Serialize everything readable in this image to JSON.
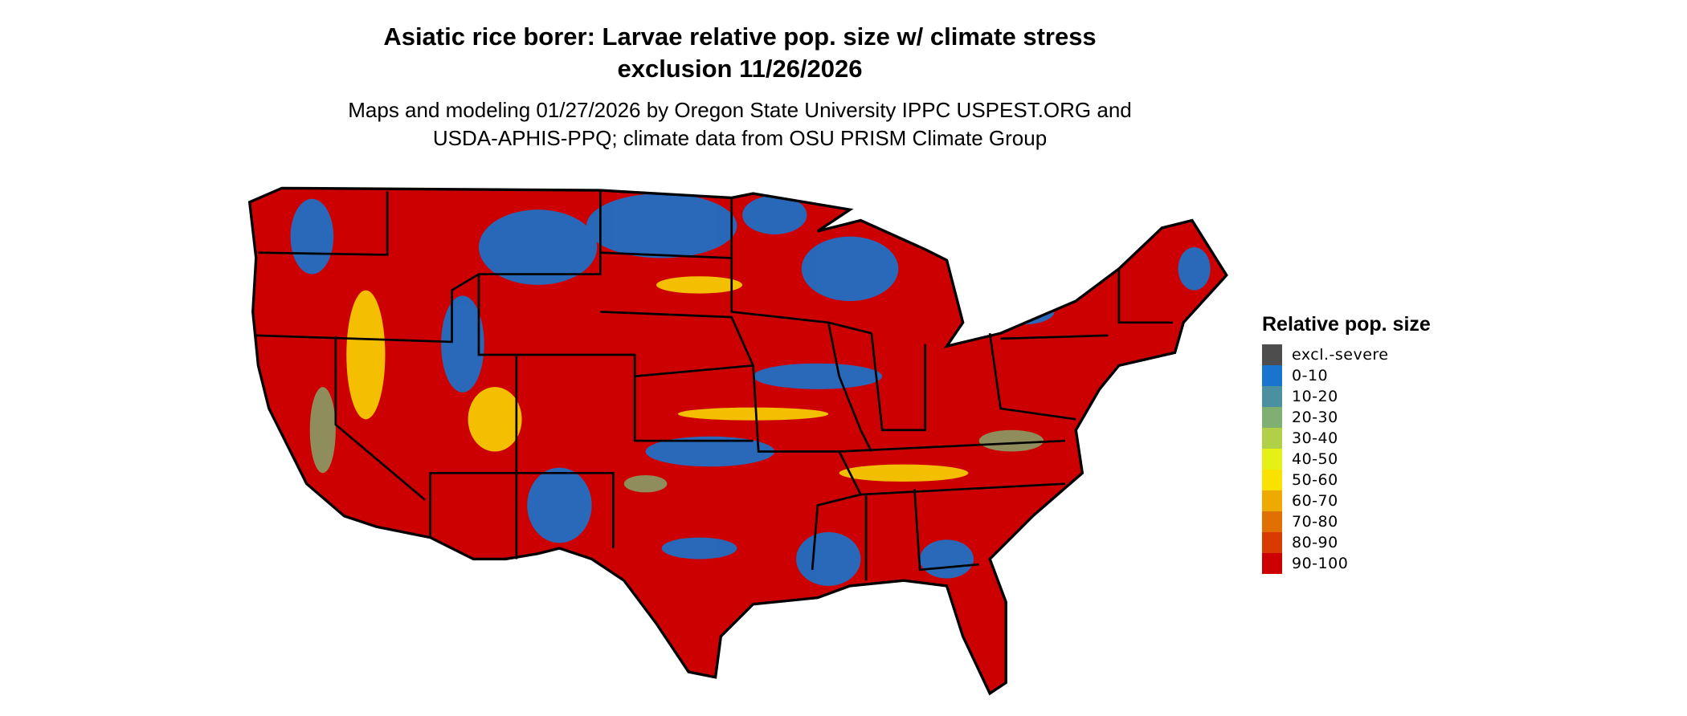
{
  "title": {
    "line1": "Asiatic rice borer: Larvae relative pop. size w/ climate stress",
    "line2": "exclusion 11/26/2026"
  },
  "subtitle": {
    "line1": "Maps and modeling 01/27/2026 by Oregon State University IPPC USPEST.ORG and",
    "line2": "USDA-APHIS-PPQ; climate data from OSU PRISM Climate Group"
  },
  "legend": {
    "title": "Relative pop. size",
    "items": [
      {
        "label": "excl.-severe",
        "color": "#4d4d4d"
      },
      {
        "label": "0-10",
        "color": "#1874cd"
      },
      {
        "label": "10-20",
        "color": "#4a90a0"
      },
      {
        "label": "20-30",
        "color": "#7fb072"
      },
      {
        "label": "30-40",
        "color": "#b2d047"
      },
      {
        "label": "40-50",
        "color": "#e5f016"
      },
      {
        "label": "50-60",
        "color": "#f9e100"
      },
      {
        "label": "60-70",
        "color": "#eeaa00"
      },
      {
        "label": "70-80",
        "color": "#e07000"
      },
      {
        "label": "80-90",
        "color": "#d93a00"
      },
      {
        "label": "90-100",
        "color": "#cc0000"
      }
    ]
  }
}
